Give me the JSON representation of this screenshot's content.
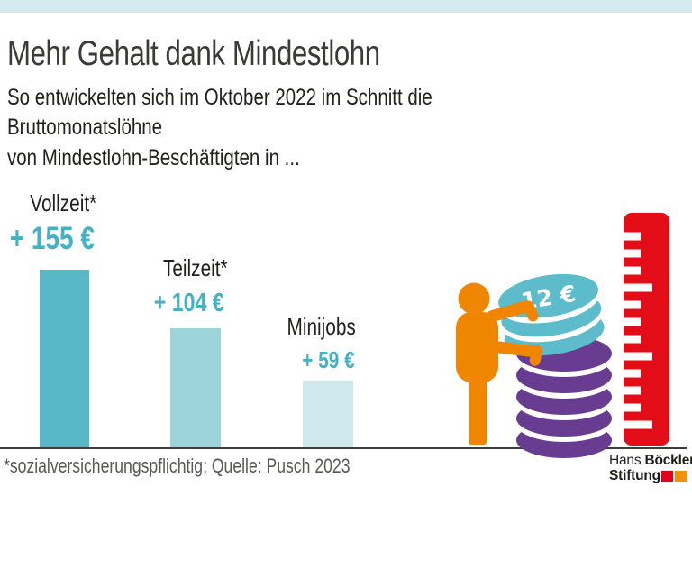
{
  "page": {
    "top_band_color": "#d6eaf2",
    "background": "#ffffff"
  },
  "header": {
    "title": "Mehr Gehalt dank Mindestlohn",
    "subtitle": "So entwickelten sich im Oktober 2022 im Schnitt die Bruttomonatslöhne\nvon Mindestlohn-Beschäftigten in ..."
  },
  "chart_data": {
    "type": "bar",
    "title": "Mehr Gehalt dank Mindestlohn",
    "categories": [
      "Vollzeit*",
      "Teilzeit*",
      "Minijobs"
    ],
    "values": [
      155,
      104,
      59
    ],
    "value_labels": [
      "+ 155 €",
      "+ 104 €",
      "+ 59 €"
    ],
    "unit": "€",
    "bar_colors": [
      "#59b8c7",
      "#9dd3da",
      "#cfe8eb"
    ],
    "value_label_color": "#41b3c5",
    "ylim": [
      0,
      155
    ],
    "grid": false,
    "legend": false,
    "baseline_color": "#3e3d3b"
  },
  "illustration": {
    "coin_label": "12 €",
    "description": "worker figure stacking coins next to a ruler",
    "colors": {
      "person_orange": "#f08500",
      "coin_teal": "#5cbccb",
      "coin_purple": "#683c90",
      "ruler_red": "#e30d18"
    }
  },
  "footer": {
    "note": "*sozialversicherungspflichtig; Quelle: Pusch 2023"
  },
  "logo": {
    "line1_regular": "Hans",
    "line1_bold": "Böckler",
    "line2_bold": "Stiftung",
    "square_red": "#e2001a",
    "square_orange": "#f29104"
  }
}
